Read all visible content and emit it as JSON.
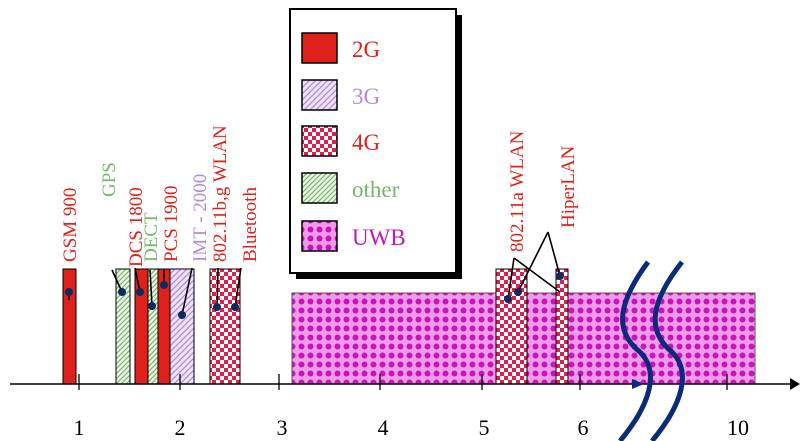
{
  "legend": {
    "items": [
      {
        "key": "2G",
        "label": "2G",
        "pattern": "solid-2g",
        "text_color": "#e0201a"
      },
      {
        "key": "3G",
        "label": "3G",
        "pattern": "pat-3g",
        "text_color": "#b38bdb"
      },
      {
        "key": "4G",
        "label": "4G",
        "pattern": "pat-4g",
        "text_color": "#e0201a"
      },
      {
        "key": "other",
        "label": "other",
        "pattern": "pat-other",
        "text_color": "#77b86a"
      },
      {
        "key": "UWB",
        "label": "UWB",
        "pattern": "pat-uwb",
        "text_color": "#c814b8"
      }
    ]
  },
  "axis": {
    "ticks": [
      "1",
      "2",
      "3",
      "4",
      "5",
      "6",
      "10"
    ]
  },
  "bands": [
    {
      "label": "GSM 900",
      "category": "2G",
      "label_color": "#e0201a"
    },
    {
      "label": "GPS",
      "category": "other",
      "label_color": "#77b86a"
    },
    {
      "label": "DCS 1800",
      "category": "2G",
      "label_color": "#e0201a"
    },
    {
      "label": "DECT",
      "category": "other",
      "label_color": "#77b86a"
    },
    {
      "label": "PCS 1900",
      "category": "2G",
      "label_color": "#e0201a"
    },
    {
      "label": "IMT - 2000",
      "category": "3G",
      "label_color": "#b38bdb"
    },
    {
      "label": "802.11b,g WLAN",
      "category": "4G",
      "label_color": "#e0201a"
    },
    {
      "label": "Bluetooth",
      "category": "4G",
      "label_color": "#e0201a"
    },
    {
      "label": "802.11a WLAN",
      "category": "4G",
      "label_color": "#e0201a"
    },
    {
      "label": "HiperLAN",
      "category": "4G",
      "label_color": "#e0201a"
    },
    {
      "label": "",
      "category": "UWB",
      "label_color": "#c814b8"
    }
  ],
  "colors": {
    "red": "#e0201a",
    "violet": "#c814b8",
    "lavender": "#b38bdb",
    "green": "#77b86a",
    "break_line": "#0b2a7a",
    "axis": "#000000"
  }
}
